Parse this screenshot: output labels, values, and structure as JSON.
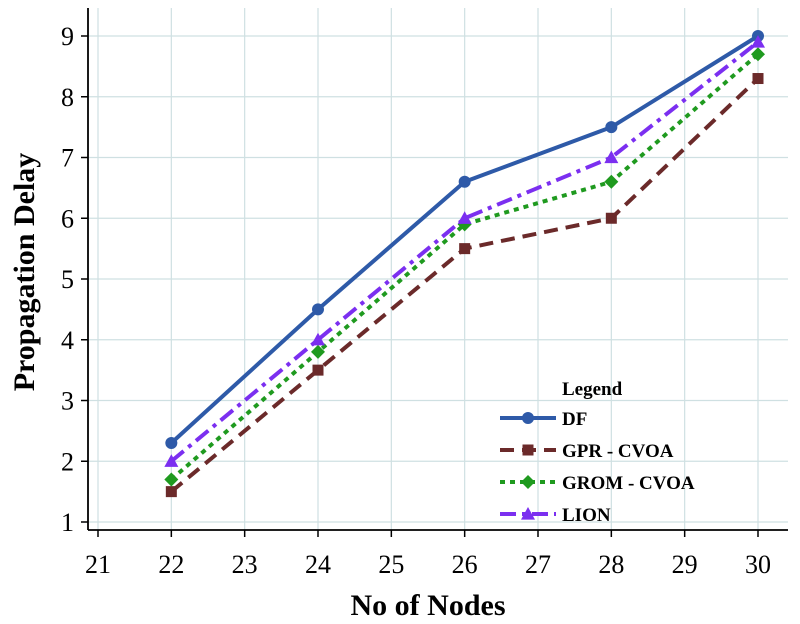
{
  "chart_data": {
    "type": "line",
    "title": "",
    "xlabel": "No of Nodes",
    "ylabel": "Propagation Delay",
    "xlim": [
      21,
      30
    ],
    "ylim": [
      1,
      9
    ],
    "xticks": [
      "21",
      "22",
      "23",
      "24",
      "25",
      "26",
      "27",
      "28",
      "29",
      "30"
    ],
    "yticks": [
      "1",
      "2",
      "3",
      "4",
      "5",
      "6",
      "7",
      "8",
      "9"
    ],
    "x": [
      22,
      24,
      26,
      28,
      30
    ],
    "grid": true,
    "legend": {
      "title": "Legend",
      "position": "bottom-right"
    },
    "series": [
      {
        "name": "DF",
        "values": [
          2.3,
          4.5,
          6.6,
          7.5,
          9.0
        ],
        "color": "#2e5aa8",
        "dash": "solid",
        "marker": "circle"
      },
      {
        "name": "GPR - CVOA",
        "values": [
          1.5,
          3.5,
          5.5,
          6.0,
          8.3
        ],
        "color": "#6b2a2a",
        "dash": "dashed",
        "marker": "square"
      },
      {
        "name": "GROM - CVOA",
        "values": [
          1.7,
          3.8,
          5.9,
          6.6,
          8.7
        ],
        "color": "#1f9a1f",
        "dash": "dotted",
        "marker": "diamond"
      },
      {
        "name": "LION",
        "values": [
          2.0,
          4.0,
          6.0,
          7.0,
          8.9
        ],
        "color": "#7b2ff0",
        "dash": "dashdot",
        "marker": "triangle"
      }
    ]
  }
}
